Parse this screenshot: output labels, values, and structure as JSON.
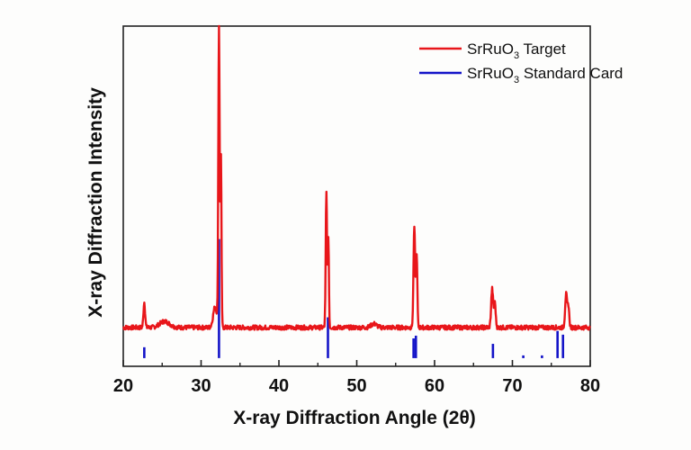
{
  "chart_data": {
    "type": "line",
    "title": "",
    "xlabel": "X-ray Diffraction Angle (2θ)",
    "ylabel": "X-ray Diffraction Intensity",
    "xlim": [
      20,
      80
    ],
    "ylim": [
      0,
      100
    ],
    "x_ticks": [
      20,
      30,
      40,
      50,
      60,
      70,
      80
    ],
    "x_minor_ticks": [
      25,
      35,
      45,
      55,
      65,
      75
    ],
    "y_ticks": [],
    "grid": false,
    "legend_position": "upper right",
    "legend": [
      {
        "label": "SrRuO",
        "subscript": "3",
        "suffix": " Target",
        "color": "#e8161a"
      },
      {
        "label": "SrRuO",
        "subscript": "3",
        "suffix": " Standard Card",
        "color": "#1414c8"
      }
    ],
    "series": [
      {
        "name": "SrRuO3 Target",
        "kind": "line",
        "color": "#e8161a",
        "baseline": 11.4,
        "peaks": [
          {
            "x": 22.7,
            "y": 18.8,
            "width": 0.15
          },
          {
            "x": 25.3,
            "y": 13.2,
            "width": 0.9
          },
          {
            "x": 31.8,
            "y": 17.5,
            "width": 0.35
          },
          {
            "x": 32.3,
            "y": 100,
            "width": 0.12
          },
          {
            "x": 32.55,
            "y": 61,
            "width": 0.1
          },
          {
            "x": 46.1,
            "y": 51,
            "width": 0.12
          },
          {
            "x": 46.35,
            "y": 38,
            "width": 0.1
          },
          {
            "x": 52.2,
            "y": 12.5,
            "width": 0.5
          },
          {
            "x": 57.4,
            "y": 41,
            "width": 0.15
          },
          {
            "x": 57.7,
            "y": 33,
            "width": 0.12
          },
          {
            "x": 67.4,
            "y": 22.8,
            "width": 0.18
          },
          {
            "x": 67.75,
            "y": 18.5,
            "width": 0.15
          },
          {
            "x": 76.9,
            "y": 21.2,
            "width": 0.18
          },
          {
            "x": 77.2,
            "y": 17.5,
            "width": 0.15
          }
        ]
      },
      {
        "name": "SrRuO3 Standard Card",
        "kind": "stick",
        "color": "#1414c8",
        "base": 2.4,
        "x": [
          22.7,
          32.3,
          46.3,
          57.3,
          57.6,
          67.5,
          71.4,
          73.8,
          75.8,
          76.5
        ],
        "values": [
          3.2,
          35.0,
          12.0,
          5.8,
          6.6,
          4.2,
          0.8,
          0.8,
          8.0,
          6.9
        ]
      }
    ]
  }
}
